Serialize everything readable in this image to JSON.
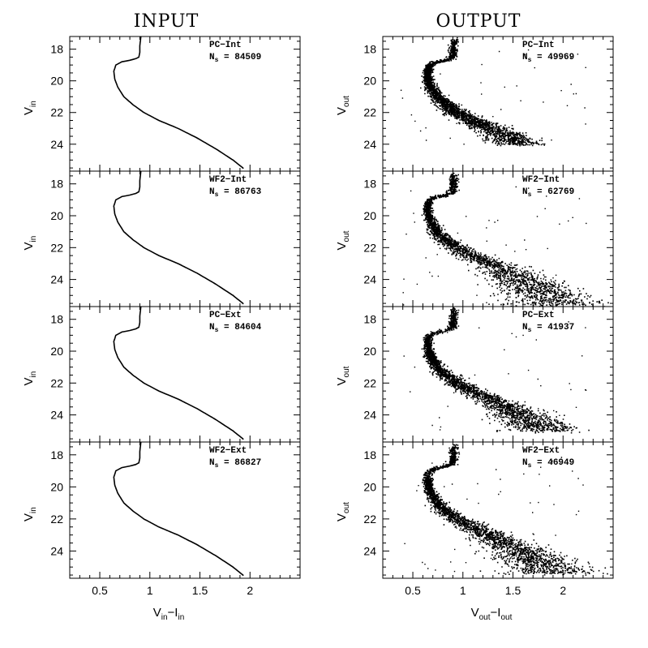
{
  "chart_data": {
    "type": "scatter",
    "columns": [
      {
        "title": "INPUT",
        "xlabel_main": "V",
        "xlabel_sub1": "in",
        "xlabel_sep": "−I",
        "xlabel_sub2": "in",
        "ylabel_main": "V",
        "ylabel_sub": "in",
        "xlim": [
          0.2,
          2.5
        ],
        "ylim": [
          25.7,
          17.2
        ],
        "xticks": [
          "0.5",
          "1",
          "1.5",
          "2"
        ]
      },
      {
        "title": "OUTPUT",
        "xlabel_main": "V",
        "xlabel_sub1": "out",
        "xlabel_sep": "−I",
        "xlabel_sub2": "out",
        "ylabel_main": "V",
        "ylabel_sub": "out",
        "xlim": [
          0.2,
          2.5
        ],
        "ylim": [
          25.7,
          17.2
        ],
        "xticks": [
          "0.5",
          "1",
          "1.5",
          "2"
        ]
      }
    ],
    "yticks": [
      "18",
      "20",
      "22",
      "24"
    ],
    "panels": [
      {
        "row": 0,
        "col": 0,
        "label": "PC−Int",
        "n_label": "N",
        "n_sub": "s",
        "n_value": "= 84509",
        "mode": "curve"
      },
      {
        "row": 0,
        "col": 1,
        "label": "PC−Int",
        "n_label": "N",
        "n_sub": "s",
        "n_value": "= 49969",
        "mode": "scatter",
        "faint_limit": 24.0,
        "spread": 0.12
      },
      {
        "row": 1,
        "col": 0,
        "label": "WF2−Int",
        "n_label": "N",
        "n_sub": "s",
        "n_value": "= 86763",
        "mode": "curve"
      },
      {
        "row": 1,
        "col": 1,
        "label": "WF2−Int",
        "n_label": "N",
        "n_sub": "s",
        "n_value": "= 62769",
        "mode": "scatter",
        "faint_limit": 25.6,
        "spread": 0.14
      },
      {
        "row": 2,
        "col": 0,
        "label": "PC−Ext",
        "n_label": "N",
        "n_sub": "s",
        "n_value": "= 84604",
        "mode": "curve"
      },
      {
        "row": 2,
        "col": 1,
        "label": "PC−Ext",
        "n_label": "N",
        "n_sub": "s",
        "n_value": "= 41937",
        "mode": "scatter",
        "faint_limit": 25.0,
        "spread": 0.12
      },
      {
        "row": 3,
        "col": 0,
        "label": "WF2−Ext",
        "n_label": "N",
        "n_sub": "s",
        "n_value": "= 86827",
        "mode": "curve"
      },
      {
        "row": 3,
        "col": 1,
        "label": "WF2−Ext",
        "n_label": "N",
        "n_sub": "s",
        "n_value": "= 46949",
        "mode": "scatter",
        "faint_limit": 25.4,
        "spread": 0.14
      }
    ],
    "fiducial_sequence": {
      "x": [
        0.91,
        0.9,
        0.9,
        0.89,
        0.86,
        0.8,
        0.72,
        0.66,
        0.64,
        0.65,
        0.68,
        0.74,
        0.83,
        0.94,
        1.09,
        1.28,
        1.47,
        1.66,
        1.83,
        1.93
      ],
      "y": [
        17.2,
        17.8,
        18.2,
        18.5,
        18.6,
        18.7,
        18.8,
        19.0,
        19.4,
        19.9,
        20.4,
        21.0,
        21.5,
        22.0,
        22.5,
        23.0,
        23.6,
        24.3,
        25.0,
        25.5
      ]
    },
    "colors": {
      "axes": "#000000",
      "points": "#000000",
      "background": "#ffffff"
    }
  }
}
